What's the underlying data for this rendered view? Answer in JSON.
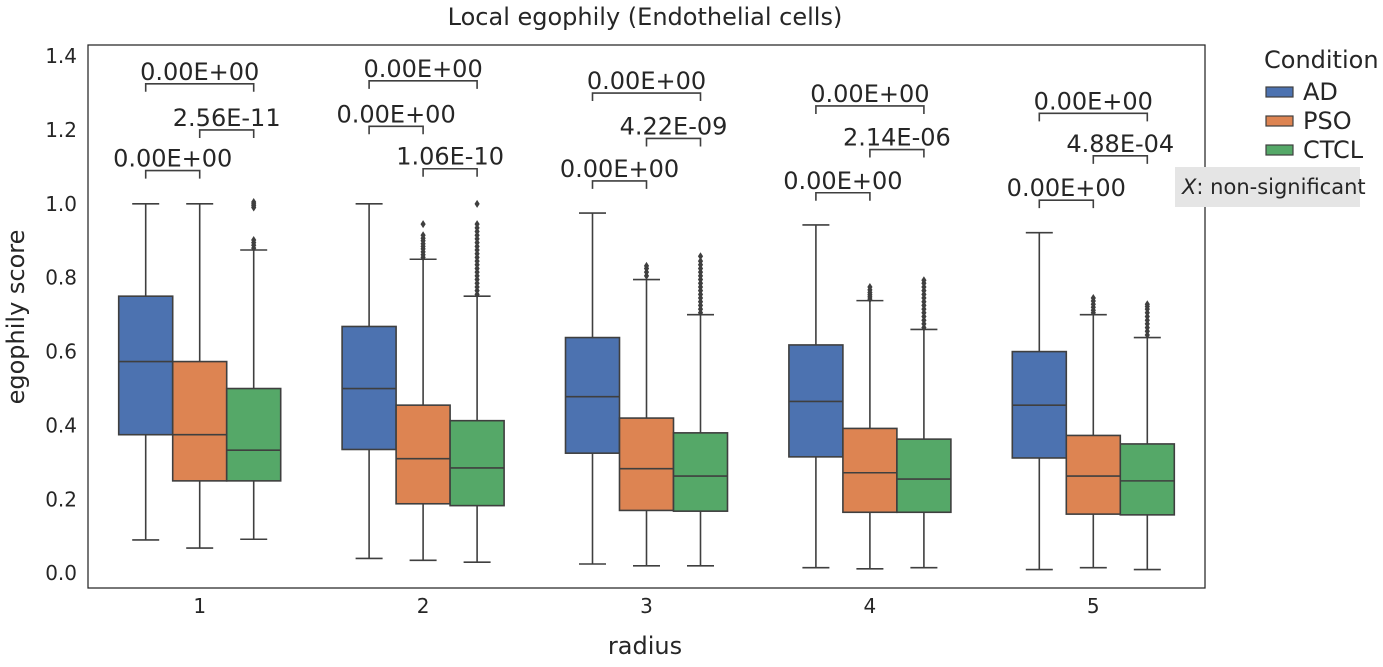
{
  "chart_data": {
    "type": "box",
    "title": "Local egophily (Endothelial cells)",
    "xlabel": "radius",
    "ylabel": "egophily score",
    "categories": [
      "1",
      "2",
      "3",
      "4",
      "5"
    ],
    "ylim": [
      -0.04,
      1.43
    ],
    "yticks": [
      0.0,
      0.2,
      0.4,
      0.6,
      0.8,
      1.0,
      1.2,
      1.4
    ],
    "ytick_labels": [
      "0.0",
      "0.2",
      "0.4",
      "0.6",
      "0.8",
      "1.0",
      "1.2",
      "1.4"
    ],
    "grid": false,
    "legend": {
      "title": "Condition",
      "placement": "outside-top-right",
      "entries": [
        "AD",
        "PSO",
        "CTCL"
      ]
    },
    "note": "non-significant",
    "note_symbol": "X",
    "note_separator": ": ",
    "series": [
      {
        "name": "AD",
        "color": "#4c72b0",
        "boxes": [
          {
            "whislo": 0.09,
            "q1": 0.375,
            "med": 0.573,
            "q3": 0.75,
            "whishi": 1.0,
            "fliers": []
          },
          {
            "whislo": 0.04,
            "q1": 0.335,
            "med": 0.5,
            "q3": 0.668,
            "whishi": 1.0,
            "fliers": []
          },
          {
            "whislo": 0.025,
            "q1": 0.325,
            "med": 0.478,
            "q3": 0.638,
            "whishi": 0.975,
            "fliers": []
          },
          {
            "whislo": 0.015,
            "q1": 0.315,
            "med": 0.465,
            "q3": 0.618,
            "whishi": 0.943,
            "fliers": []
          },
          {
            "whislo": 0.01,
            "q1": 0.312,
            "med": 0.455,
            "q3": 0.6,
            "whishi": 0.922,
            "fliers": []
          }
        ]
      },
      {
        "name": "PSO",
        "color": "#dd8452",
        "boxes": [
          {
            "whislo": 0.068,
            "q1": 0.25,
            "med": 0.375,
            "q3": 0.573,
            "whishi": 1.0,
            "fliers": []
          },
          {
            "whislo": 0.035,
            "q1": 0.188,
            "med": 0.31,
            "q3": 0.455,
            "whishi": 0.85,
            "fliers": [
              0.855,
              0.862,
              0.87,
              0.878,
              0.885,
              0.892,
              0.9,
              0.907,
              0.915,
              0.945
            ]
          },
          {
            "whislo": 0.02,
            "q1": 0.17,
            "med": 0.283,
            "q3": 0.42,
            "whishi": 0.795,
            "fliers": [
              0.805,
              0.815,
              0.825,
              0.832
            ]
          },
          {
            "whislo": 0.012,
            "q1": 0.165,
            "med": 0.272,
            "q3": 0.392,
            "whishi": 0.738,
            "fliers": [
              0.742,
              0.748,
              0.754,
              0.76,
              0.767,
              0.775
            ]
          },
          {
            "whislo": 0.015,
            "q1": 0.16,
            "med": 0.263,
            "q3": 0.373,
            "whishi": 0.7,
            "fliers": [
              0.705,
              0.712,
              0.72,
              0.728,
              0.737,
              0.745
            ]
          }
        ]
      },
      {
        "name": "CTCL",
        "color": "#55a868",
        "boxes": [
          {
            "whislo": 0.092,
            "q1": 0.25,
            "med": 0.333,
            "q3": 0.5,
            "whishi": 0.875,
            "fliers": [
              0.88,
              0.888,
              0.895,
              0.902,
              0.99,
              0.995,
              1.0,
              1.005
            ]
          },
          {
            "whislo": 0.03,
            "q1": 0.183,
            "med": 0.285,
            "q3": 0.413,
            "whishi": 0.75,
            "fliers": [
              0.755,
              0.765,
              0.775,
              0.785,
              0.795,
              0.805,
              0.815,
              0.825,
              0.835,
              0.845,
              0.855,
              0.865,
              0.875,
              0.885,
              0.895,
              0.905,
              0.915,
              0.925,
              0.935,
              0.945,
              1.0
            ]
          },
          {
            "whislo": 0.02,
            "q1": 0.168,
            "med": 0.263,
            "q3": 0.38,
            "whishi": 0.7,
            "fliers": [
              0.705,
              0.715,
              0.725,
              0.735,
              0.745,
              0.755,
              0.765,
              0.775,
              0.785,
              0.795,
              0.805,
              0.815,
              0.825,
              0.835,
              0.845,
              0.858
            ]
          },
          {
            "whislo": 0.015,
            "q1": 0.165,
            "med": 0.255,
            "q3": 0.363,
            "whishi": 0.66,
            "fliers": [
              0.665,
              0.675,
              0.685,
              0.695,
              0.705,
              0.715,
              0.725,
              0.735,
              0.745,
              0.755,
              0.765,
              0.775,
              0.785,
              0.793
            ]
          },
          {
            "whislo": 0.01,
            "q1": 0.158,
            "med": 0.25,
            "q3": 0.35,
            "whishi": 0.638,
            "fliers": [
              0.645,
              0.655,
              0.665,
              0.675,
              0.685,
              0.695,
              0.705,
              0.715,
              0.722,
              0.728
            ]
          }
        ]
      }
    ],
    "annotations": [
      {
        "group": 0,
        "from": "AD",
        "to": "CTCL",
        "y": 1.325,
        "label": "0.00E+00"
      },
      {
        "group": 0,
        "from": "PSO",
        "to": "CTCL",
        "y": 1.2,
        "label": "2.56E-11"
      },
      {
        "group": 0,
        "from": "AD",
        "to": "PSO",
        "y": 1.09,
        "label": "0.00E+00"
      },
      {
        "group": 1,
        "from": "AD",
        "to": "CTCL",
        "y": 1.333,
        "label": "0.00E+00"
      },
      {
        "group": 1,
        "from": "AD",
        "to": "PSO",
        "y": 1.21,
        "label": "0.00E+00"
      },
      {
        "group": 1,
        "from": "PSO",
        "to": "CTCL",
        "y": 1.095,
        "label": "1.06E-10"
      },
      {
        "group": 2,
        "from": "AD",
        "to": "CTCL",
        "y": 1.3,
        "label": "0.00E+00"
      },
      {
        "group": 2,
        "from": "PSO",
        "to": "CTCL",
        "y": 1.177,
        "label": "4.22E-09"
      },
      {
        "group": 2,
        "from": "AD",
        "to": "PSO",
        "y": 1.062,
        "label": "0.00E+00"
      },
      {
        "group": 3,
        "from": "AD",
        "to": "CTCL",
        "y": 1.265,
        "label": "0.00E+00"
      },
      {
        "group": 3,
        "from": "PSO",
        "to": "CTCL",
        "y": 1.147,
        "label": "2.14E-06"
      },
      {
        "group": 3,
        "from": "AD",
        "to": "PSO",
        "y": 1.03,
        "label": "0.00E+00"
      },
      {
        "group": 4,
        "from": "AD",
        "to": "CTCL",
        "y": 1.245,
        "label": "0.00E+00"
      },
      {
        "group": 4,
        "from": "PSO",
        "to": "CTCL",
        "y": 1.13,
        "label": "4.88E-04"
      },
      {
        "group": 4,
        "from": "AD",
        "to": "PSO",
        "y": 1.01,
        "label": "0.00E+00"
      }
    ]
  }
}
